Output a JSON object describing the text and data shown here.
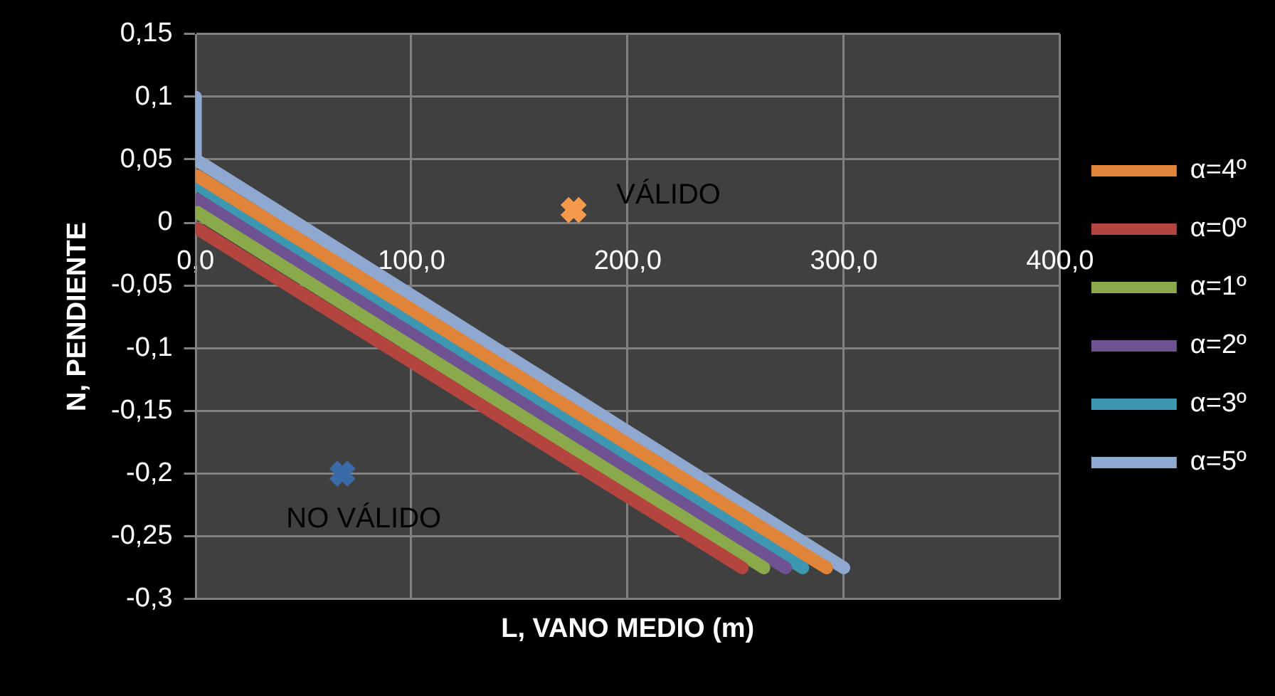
{
  "chart_data": {
    "type": "line",
    "xlabel": "L, VANO MEDIO (m)",
    "ylabel": "N, PENDIENTE",
    "xlim": [
      0,
      400
    ],
    "xticks": [
      {
        "value": 0,
        "label": "0,0"
      },
      {
        "value": 100,
        "label": "100,0"
      },
      {
        "value": 200,
        "label": "200,0"
      },
      {
        "value": 300,
        "label": "300,0"
      },
      {
        "value": 400,
        "label": "400,0"
      }
    ],
    "ylim": [
      -0.3,
      0.15
    ],
    "yticks": [
      {
        "value": -0.3,
        "label": "-0,3"
      },
      {
        "value": -0.25,
        "label": "-0,25"
      },
      {
        "value": -0.2,
        "label": "-0,2"
      },
      {
        "value": -0.15,
        "label": "-0,15"
      },
      {
        "value": -0.1,
        "label": "-0,1"
      },
      {
        "value": -0.05,
        "label": "-0,05"
      },
      0,
      {
        "value": 0.05,
        "label": "0,05"
      },
      {
        "value": 0.1,
        "label": "0,1"
      },
      {
        "value": 0.15,
        "label": "0,15"
      }
    ],
    "grid": true,
    "legend": "right",
    "marker": "none",
    "line_style": "solid",
    "series": [
      {
        "name": "α=4º",
        "color": "#e0843a",
        "x": [
          1,
          292
        ],
        "values": [
          0.037,
          -0.275
        ]
      },
      {
        "name": "α=0º",
        "color": "#b4443e",
        "x": [
          1,
          253
        ],
        "values": [
          -0.005,
          -0.275
        ]
      },
      {
        "name": "α=1º",
        "color": "#8aa94a",
        "x": [
          1,
          263
        ],
        "values": [
          0.008,
          -0.275
        ]
      },
      {
        "name": "α=2º",
        "color": "#6f5291",
        "x": [
          1,
          273
        ],
        "values": [
          0.018,
          -0.275
        ]
      },
      {
        "name": "α=3º",
        "color": "#3e97b0",
        "x": [
          1,
          281
        ],
        "values": [
          0.03,
          -0.275
        ]
      },
      {
        "name": "α=5º",
        "color": "#8fa8d0",
        "x": [
          0,
          0,
          5,
          300
        ],
        "values": [
          0.1,
          0.05,
          0.045,
          -0.275
        ]
      },
      {
        "type": "scatter",
        "marker": "cross",
        "color": "#f59a4c",
        "x": [
          175
        ],
        "values": [
          0.01
        ]
      },
      {
        "type": "scatter",
        "marker": "cross",
        "color": "#3b6aa8",
        "x": [
          68
        ],
        "values": [
          -0.2
        ]
      }
    ],
    "annotations": [
      {
        "text": "VÁLIDO",
        "x": 175,
        "y": 0.01
      },
      {
        "text": "NO VÁLIDO",
        "x": 68,
        "y": -0.2
      }
    ]
  }
}
